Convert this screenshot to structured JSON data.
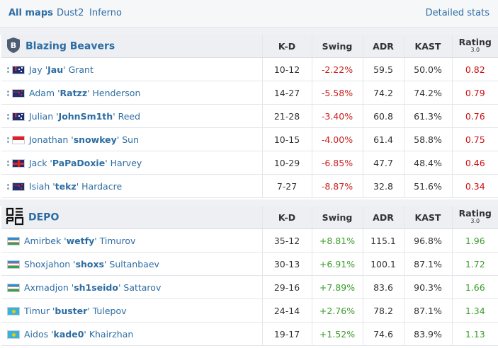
{
  "tabs": [
    {
      "label": "All maps",
      "active": true
    },
    {
      "label": "Dust2",
      "active": false
    },
    {
      "label": "Inferno",
      "active": false
    }
  ],
  "detailed_stats_label": "Detailed stats",
  "columns": {
    "kd": "K-D",
    "swing": "Swing",
    "adr": "ADR",
    "kast": "KAST",
    "rating": "Rating",
    "rating_version": "3.0"
  },
  "team1": {
    "name": "Blazing Beavers",
    "logo_letter": "B",
    "players": [
      {
        "first": "Jay '",
        "nick": "Jau",
        "last": "' Grant",
        "flag": "au",
        "kd": "10-12",
        "swing": "-2.22%",
        "adr": "59.5",
        "kast": "50.0%",
        "rating": "0.82"
      },
      {
        "first": "Adam '",
        "nick": "Ratzz",
        "last": "' Henderson",
        "flag": "nz",
        "kd": "14-27",
        "swing": "-5.58%",
        "adr": "74.2",
        "kast": "74.2%",
        "rating": "0.79"
      },
      {
        "first": "Julian '",
        "nick": "JohnSm1th",
        "last": "' Reed",
        "flag": "au",
        "kd": "21-28",
        "swing": "-3.40%",
        "adr": "60.8",
        "kast": "61.3%",
        "rating": "0.76"
      },
      {
        "first": "Jonathan '",
        "nick": "snowkey",
        "last": "' Sun",
        "flag": "sg",
        "kd": "10-15",
        "swing": "-4.00%",
        "adr": "61.4",
        "kast": "58.8%",
        "rating": "0.75"
      },
      {
        "first": "Jack '",
        "nick": "PaPaDoxie",
        "last": "' Harvey",
        "flag": "gb",
        "kd": "10-29",
        "swing": "-6.85%",
        "adr": "47.7",
        "kast": "48.4%",
        "rating": "0.46"
      },
      {
        "first": "Isiah '",
        "nick": "tekz",
        "last": "' Hardacre",
        "flag": "nz",
        "kd": "7-27",
        "swing": "-8.87%",
        "adr": "32.8",
        "kast": "51.6%",
        "rating": "0.34"
      }
    ]
  },
  "team2": {
    "name": "DEPO",
    "players": [
      {
        "first": "Amirbek '",
        "nick": "wetfy",
        "last": "' Timurov",
        "flag": "uz",
        "kd": "35-12",
        "swing": "+8.81%",
        "adr": "115.1",
        "kast": "96.8%",
        "rating": "1.96"
      },
      {
        "first": "Shoxjahon '",
        "nick": "shoxs",
        "last": "' Sultanbaev",
        "flag": "uz",
        "kd": "30-13",
        "swing": "+6.91%",
        "adr": "100.1",
        "kast": "87.1%",
        "rating": "1.72"
      },
      {
        "first": "Axmadjon '",
        "nick": "sh1seido",
        "last": "' Sattarov",
        "flag": "uz",
        "kd": "29-16",
        "swing": "+7.89%",
        "adr": "83.6",
        "kast": "90.3%",
        "rating": "1.66"
      },
      {
        "first": "Timur '",
        "nick": "buster",
        "last": "' Tulepov",
        "flag": "kz",
        "kd": "24-14",
        "swing": "+2.76%",
        "adr": "78.2",
        "kast": "87.1%",
        "rating": "1.34"
      },
      {
        "first": "Aidos '",
        "nick": "kade0",
        "last": "' Khairzhan",
        "flag": "kz",
        "kd": "19-17",
        "swing": "+1.52%",
        "adr": "74.6",
        "kast": "83.9%",
        "rating": "1.13"
      }
    ]
  }
}
